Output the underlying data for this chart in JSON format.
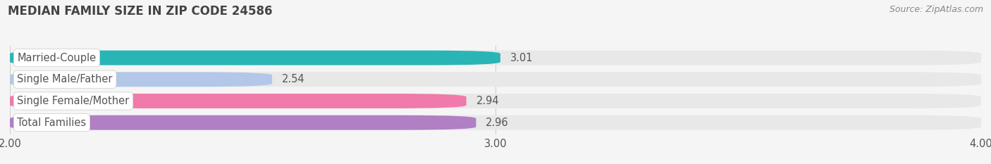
{
  "title": "MEDIAN FAMILY SIZE IN ZIP CODE 24586",
  "source": "Source: ZipAtlas.com",
  "categories": [
    "Married-Couple",
    "Single Male/Father",
    "Single Female/Mother",
    "Total Families"
  ],
  "values": [
    3.01,
    2.54,
    2.94,
    2.96
  ],
  "bar_colors": [
    "#29b5b5",
    "#b3c7e8",
    "#f07aaa",
    "#b07fc4"
  ],
  "bar_bg_color": "#e8e8e8",
  "xlim": [
    2.0,
    4.0
  ],
  "xticks": [
    2.0,
    3.0,
    4.0
  ],
  "xtick_labels": [
    "2.00",
    "3.00",
    "4.00"
  ],
  "bar_height": 0.68,
  "label_fontsize": 10.5,
  "value_fontsize": 10.5,
  "title_fontsize": 12,
  "source_fontsize": 9,
  "background_color": "#f5f5f5",
  "grid_color": "#d0d0d0",
  "text_color": "#555555",
  "value_color": "#555555"
}
